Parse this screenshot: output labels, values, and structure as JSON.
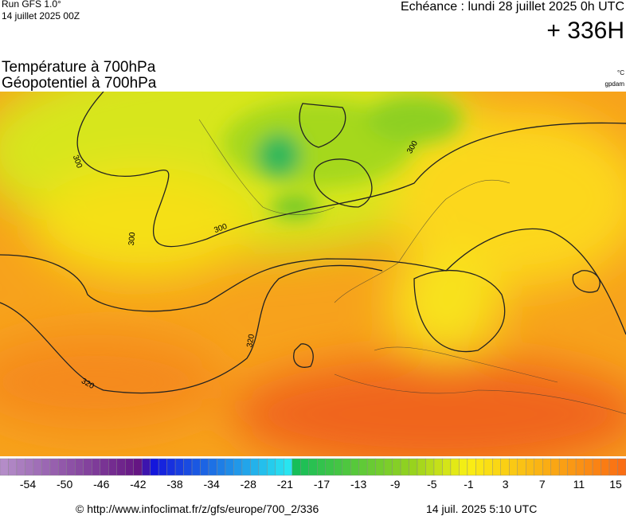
{
  "header": {
    "run": "Run GFS 1.0°",
    "run_date": "14 juillet 2025 00Z",
    "echeance": "Echéance : lundi 28 juillet 2025 0h UTC",
    "horizon": "+ 336H"
  },
  "titles": [
    "Température à 700hPa",
    "Géopotentiel à 700hPa"
  ],
  "units": [
    "°C",
    "gpdam"
  ],
  "contour_labels": [
    "300",
    "300",
    "300",
    "300",
    "320",
    "320"
  ],
  "colorbar": {
    "labels": [
      -54,
      -50,
      -46,
      -42,
      -38,
      -34,
      -28,
      -21,
      -17,
      -13,
      -9,
      -5,
      -1,
      3,
      7,
      11,
      15
    ]
  },
  "footer": {
    "url": "© http://www.infoclimat.fr/z/gfs/europe/700_2/336",
    "timestamp": "14 juil. 2025  5:10 UTC"
  }
}
